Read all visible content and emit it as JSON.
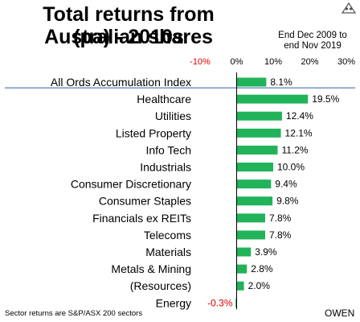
{
  "header": {
    "title_line1": "Total returns from Australian shares",
    "title_line2": "(pa) -  2010s",
    "period_line1": "End Dec 2009 to",
    "period_line2": "end Nov 2019"
  },
  "footer": {
    "footnote": "Sector returns are S&P/ASX 200 sectors",
    "brand": "OWEN"
  },
  "colors": {
    "bar": "#21b35a",
    "negative_text": "#e00000",
    "divider": "#2e5fa8"
  },
  "chart_data": {
    "type": "bar",
    "orientation": "horizontal",
    "title": "Total returns from Australian shares (pa) -  2010s",
    "xlim": [
      -10,
      30
    ],
    "ticks": [
      {
        "value": -10,
        "label": "-10%"
      },
      {
        "value": 0,
        "label": "0%"
      },
      {
        "value": 10,
        "label": "10%"
      },
      {
        "value": 20,
        "label": "20%"
      },
      {
        "value": 30,
        "label": "30%"
      }
    ],
    "categories": [
      "All Ords Accumulation Index",
      "Healthcare",
      "Utilities",
      "Listed Property",
      "Info Tech",
      "Industrials",
      "Consumer Discretionary",
      "Consumer Staples",
      "Financials ex REITs",
      "Telecoms",
      "Materials",
      "Metals & Mining",
      "(Resources)",
      "Energy"
    ],
    "values": [
      8.1,
      19.5,
      12.4,
      12.1,
      11.2,
      10.0,
      9.4,
      9.8,
      7.8,
      7.8,
      3.9,
      2.8,
      2.0,
      -0.3
    ],
    "value_labels": [
      "8.1%",
      "19.5%",
      "12.4%",
      "12.1%",
      "11.2%",
      "10.0%",
      "9.4%",
      "9.8%",
      "7.8%",
      "7.8%",
      "3.9%",
      "2.8%",
      "2.0%",
      "-0.3%"
    ],
    "grid": false,
    "legend": "none"
  }
}
